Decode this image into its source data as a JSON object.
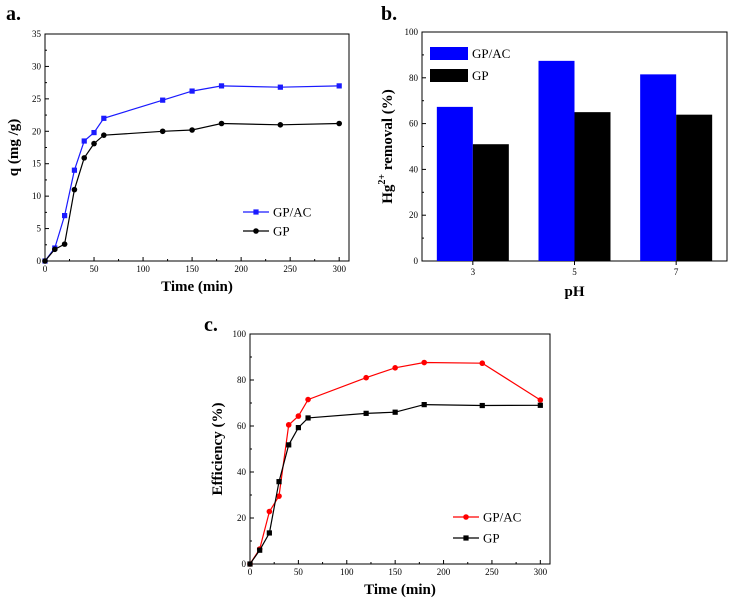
{
  "chart_data": [
    {
      "panel": "a.",
      "type": "line",
      "xlabel": "Time (min)",
      "ylabel": "q (mg /g)",
      "xlim": [
        0,
        310
      ],
      "ylim": [
        0,
        35
      ],
      "xticks": [
        0,
        50,
        100,
        150,
        200,
        250,
        300
      ],
      "yticks": [
        0,
        5,
        10,
        15,
        20,
        25,
        30,
        35
      ],
      "legend_position": "bottom-right",
      "series": [
        {
          "name": "GP/AC",
          "color": "#1a1aff",
          "marker": "square",
          "x": [
            0,
            10,
            20,
            30,
            40,
            50,
            60,
            120,
            150,
            180,
            240,
            300
          ],
          "y": [
            0,
            2.0,
            7.0,
            14.0,
            18.5,
            19.8,
            22.0,
            24.8,
            26.2,
            27.0,
            26.8,
            27.0
          ]
        },
        {
          "name": "GP",
          "color": "#000000",
          "marker": "circle",
          "x": [
            0,
            10,
            20,
            30,
            40,
            50,
            60,
            120,
            150,
            180,
            240,
            300
          ],
          "y": [
            0,
            1.8,
            2.6,
            11.0,
            15.9,
            18.1,
            19.4,
            20.0,
            20.2,
            21.2,
            21.0,
            21.2
          ]
        }
      ]
    },
    {
      "panel": "b.",
      "type": "bar",
      "xlabel": "pH",
      "ylabel_main": "Hg",
      "ylabel_sup": "2+",
      "ylabel_rest": " removal (%)",
      "ylim": [
        0,
        100
      ],
      "yticks": [
        0,
        20,
        40,
        60,
        80,
        100
      ],
      "categories": [
        "3",
        "5",
        "7"
      ],
      "legend_position": "top-left",
      "series": [
        {
          "name": "GP/AC",
          "color": "#0000ff",
          "values": [
            67.3,
            87.4,
            81.5
          ]
        },
        {
          "name": "GP",
          "color": "#000000",
          "values": [
            51.0,
            65.0,
            63.9
          ]
        }
      ]
    },
    {
      "panel": "c.",
      "type": "line",
      "xlabel": "Time (min)",
      "ylabel": "Efficiency (%)",
      "xlim": [
        0,
        310
      ],
      "ylim": [
        0,
        100
      ],
      "xticks": [
        0,
        50,
        100,
        150,
        200,
        250,
        300
      ],
      "yticks": [
        0,
        20,
        40,
        60,
        80,
        100
      ],
      "legend_position": "bottom-right",
      "series": [
        {
          "name": "GP/AC",
          "color": "#ff0000",
          "marker": "circle",
          "x": [
            0,
            10,
            20,
            30,
            40,
            50,
            60,
            120,
            150,
            180,
            240,
            300
          ],
          "y": [
            0,
            6.5,
            22.8,
            29.5,
            60.5,
            64.3,
            71.5,
            81.0,
            85.3,
            87.6,
            87.3,
            71.3
          ]
        },
        {
          "name": "GP",
          "color": "#000000",
          "marker": "square",
          "x": [
            0,
            10,
            20,
            30,
            40,
            50,
            60,
            120,
            150,
            180,
            240,
            300
          ],
          "y": [
            0,
            6.0,
            13.5,
            35.8,
            51.8,
            59.3,
            63.5,
            65.5,
            66.0,
            69.3,
            68.9,
            69.0
          ]
        }
      ]
    }
  ]
}
